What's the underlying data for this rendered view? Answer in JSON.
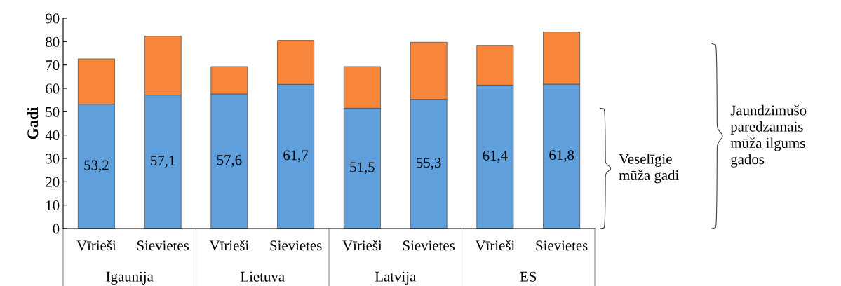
{
  "chart_data": {
    "type": "bar",
    "stacked": true,
    "ylabel": "Gadi",
    "categories": [
      "Vīrieši",
      "Sievietes",
      "Vīrieši",
      "Sievietes",
      "Vīrieši",
      "Sievietes",
      "Vīrieši",
      "Sievietes"
    ],
    "series": [
      {
        "name": "Veselīgie mūža gadi",
        "color": "#5fa0dc",
        "values": [
          53.2,
          57.1,
          57.6,
          61.7,
          51.5,
          55.3,
          61.4,
          61.8
        ],
        "value_labels": [
          "53,2",
          "57,1",
          "57,6",
          "61,7",
          "51,5",
          "55,3",
          "61,4",
          "61,8"
        ]
      },
      {
        "name": "Jaundzimušo paredzamais mūža ilgums gados",
        "color": "#f7853a",
        "values": [
          19.4,
          25.2,
          11.7,
          18.8,
          17.8,
          24.4,
          17.0,
          22.3
        ]
      }
    ],
    "annotations": [
      "Igaunija",
      "Lietuva",
      "Latvija",
      "ES"
    ],
    "ylim": [
      0,
      90
    ],
    "yticks": [
      0,
      10,
      20,
      30,
      40,
      50,
      60,
      70,
      80,
      90
    ],
    "grid": false,
    "legend": "right"
  }
}
